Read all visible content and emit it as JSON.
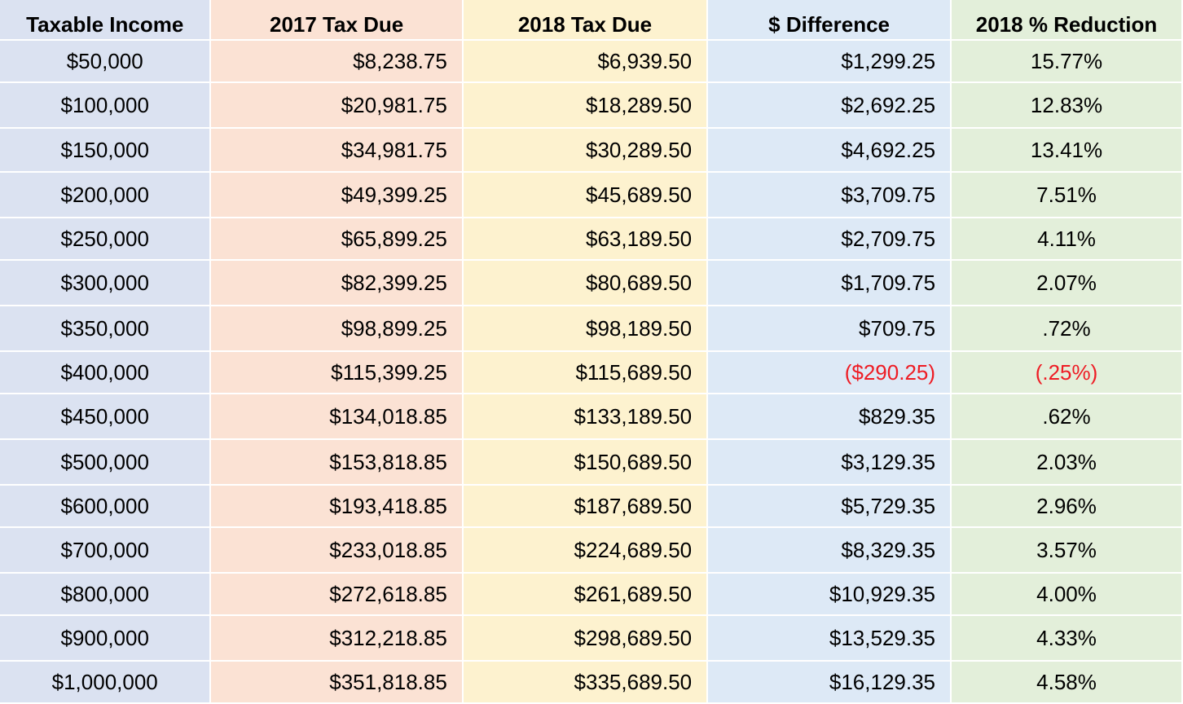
{
  "table": {
    "headers": [
      "Taxable Income",
      "2017 Tax Due",
      "2018 Tax Due",
      "$ Difference",
      "2018 % Reduction"
    ],
    "negative_color": "#ee1c24",
    "column_colors": [
      "#dbe2f1",
      "#fbe2d4",
      "#fdf2cf",
      "#dde9f6",
      "#e3efda"
    ],
    "rows": [
      {
        "income": "$50,000",
        "tax_2017": "$8,238.75",
        "tax_2018": "$6,939.50",
        "difference": "$1,299.25",
        "reduction": "15.77%"
      },
      {
        "income": "$100,000",
        "tax_2017": "$20,981.75",
        "tax_2018": "$18,289.50",
        "difference": "$2,692.25",
        "reduction": "12.83%"
      },
      {
        "income": "$150,000",
        "tax_2017": "$34,981.75",
        "tax_2018": "$30,289.50",
        "difference": "$4,692.25",
        "reduction": "13.41%"
      },
      {
        "income": "$200,000",
        "tax_2017": "$49,399.25",
        "tax_2018": "$45,689.50",
        "difference": "$3,709.75",
        "reduction": "7.51%"
      },
      {
        "income": "$250,000",
        "tax_2017": "$65,899.25",
        "tax_2018": "$63,189.50",
        "difference": "$2,709.75",
        "reduction": "4.11%"
      },
      {
        "income": "$300,000",
        "tax_2017": "$82,399.25",
        "tax_2018": "$80,689.50",
        "difference": "$1,709.75",
        "reduction": "2.07%"
      },
      {
        "income": "$350,000",
        "tax_2017": "$98,899.25",
        "tax_2018": "$98,189.50",
        "difference": "$709.75",
        "reduction": ".72%"
      },
      {
        "income": "$400,000",
        "tax_2017": "$115,399.25",
        "tax_2018": "$115,689.50",
        "difference": "($290.25)",
        "reduction": "(.25%)",
        "negative": true
      },
      {
        "income": "$450,000",
        "tax_2017": "$134,018.85",
        "tax_2018": "$133,189.50",
        "difference": "$829.35",
        "reduction": ".62%"
      },
      {
        "income": "$500,000",
        "tax_2017": "$153,818.85",
        "tax_2018": "$150,689.50",
        "difference": "$3,129.35",
        "reduction": "2.03%"
      },
      {
        "income": "$600,000",
        "tax_2017": "$193,418.85",
        "tax_2018": "$187,689.50",
        "difference": "$5,729.35",
        "reduction": "2.96%"
      },
      {
        "income": "$700,000",
        "tax_2017": "$233,018.85",
        "tax_2018": "$224,689.50",
        "difference": "$8,329.35",
        "reduction": "3.57%"
      },
      {
        "income": "$800,000",
        "tax_2017": "$272,618.85",
        "tax_2018": "$261,689.50",
        "difference": "$10,929.35",
        "reduction": "4.00%"
      },
      {
        "income": "$900,000",
        "tax_2017": "$312,218.85",
        "tax_2018": "$298,689.50",
        "difference": "$13,529.35",
        "reduction": "4.33%"
      },
      {
        "income": "$1,000,000",
        "tax_2017": "$351,818.85",
        "tax_2018": "$335,689.50",
        "difference": "$16,129.35",
        "reduction": "4.58%"
      }
    ]
  }
}
